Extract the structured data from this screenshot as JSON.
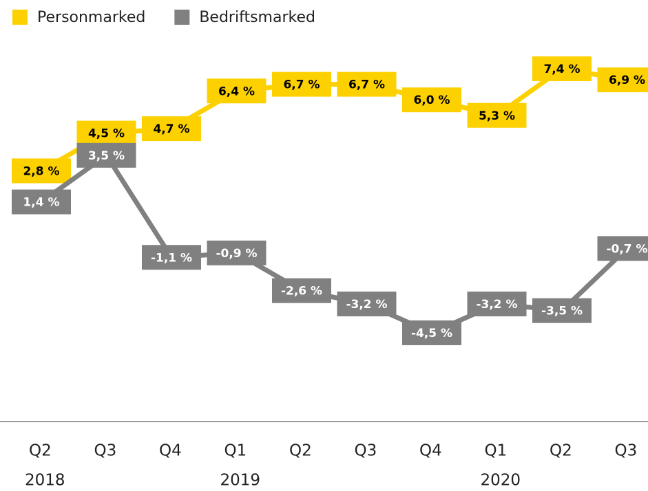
{
  "chart_data": {
    "type": "line",
    "categories": [
      "Q2",
      "Q3",
      "Q4",
      "Q1",
      "Q2",
      "Q3",
      "Q4",
      "Q1",
      "Q2",
      "Q3"
    ],
    "years": [
      "2018",
      null,
      null,
      "2019",
      null,
      null,
      null,
      "2020",
      null,
      null
    ],
    "ylim": [
      -8.5,
      10.5
    ],
    "legend": "top-left",
    "series": [
      {
        "name": "Personmarked",
        "color": "#fdd100",
        "label_color": "#000000",
        "values": [
          2.8,
          4.5,
          4.7,
          6.4,
          6.7,
          6.7,
          6.0,
          5.3,
          7.4,
          6.9
        ],
        "value_labels": [
          "2,8 %",
          "4,5 %",
          "4,7 %",
          "6,4 %",
          "6,7 %",
          "6,7 %",
          "6,0 %",
          "5,3 %",
          "7,4 %",
          "6,9 %"
        ]
      },
      {
        "name": "Bedriftsmarked",
        "color": "#808080",
        "label_color": "#ffffff",
        "values": [
          1.4,
          3.5,
          -1.1,
          -0.9,
          -2.6,
          -3.2,
          -4.5,
          -3.2,
          -3.5,
          -0.7
        ],
        "value_labels": [
          "1,4 %",
          "3,5 %",
          "-1,1 %",
          "-0,9 %",
          "-2,6 %",
          "-3,2 %",
          "-4,5 %",
          "-3,2 %",
          "-3,5 %",
          "-0,7 %"
        ]
      }
    ]
  }
}
